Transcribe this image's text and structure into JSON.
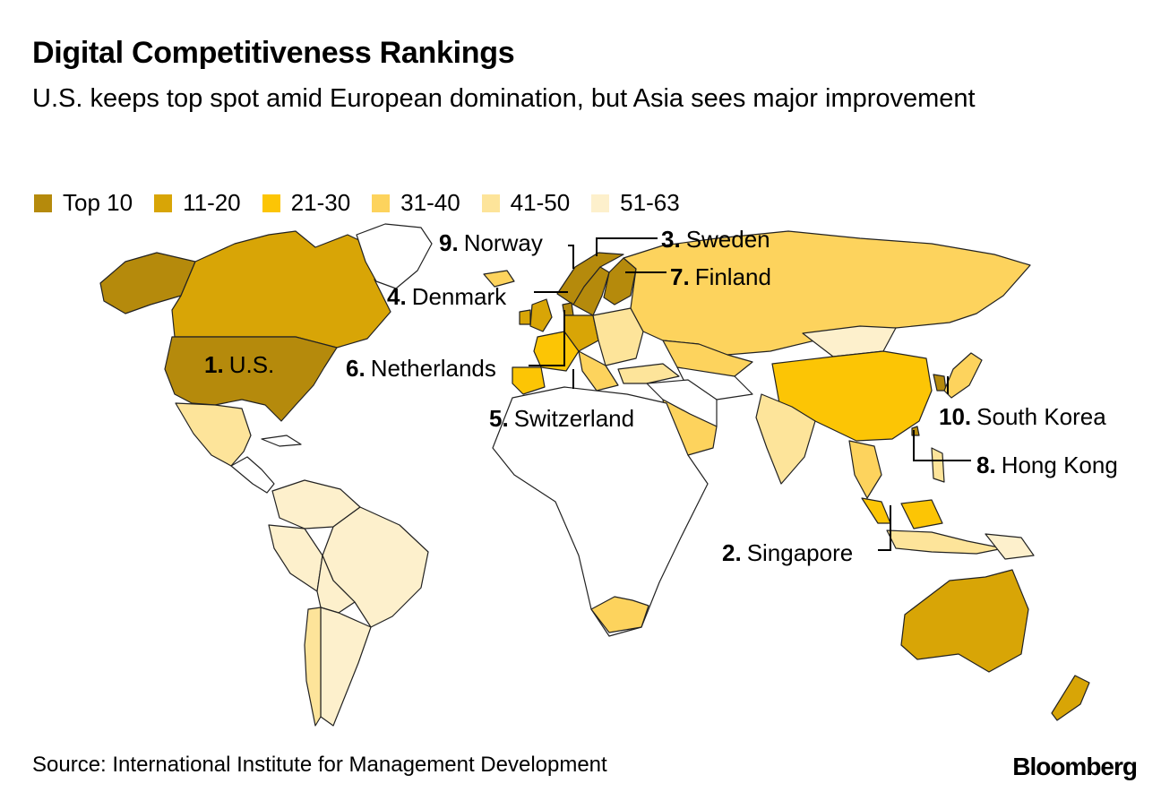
{
  "title": "Digital Competitiveness Rankings",
  "subtitle": "U.S. keeps top spot amid European domination, but Asia sees major improvement",
  "legend": [
    {
      "label": "Top 10",
      "color": "#b58a0c"
    },
    {
      "label": "11-20",
      "color": "#d8a506"
    },
    {
      "label": "21-30",
      "color": "#fcc505"
    },
    {
      "label": "31-40",
      "color": "#fdd35d"
    },
    {
      "label": "41-50",
      "color": "#fde49a"
    },
    {
      "label": "51-63",
      "color": "#fdf0cc"
    }
  ],
  "unranked_color": "#ffffff",
  "ranked": [
    {
      "rank": "1.",
      "country": "U.S."
    },
    {
      "rank": "2.",
      "country": "Singapore"
    },
    {
      "rank": "3.",
      "country": "Sweden"
    },
    {
      "rank": "4.",
      "country": "Denmark"
    },
    {
      "rank": "5.",
      "country": "Switzerland"
    },
    {
      "rank": "6.",
      "country": "Netherlands"
    },
    {
      "rank": "7.",
      "country": "Finland"
    },
    {
      "rank": "8.",
      "country": "Hong Kong"
    },
    {
      "rank": "9.",
      "country": "Norway"
    },
    {
      "rank": "10.",
      "country": "South Korea"
    }
  ],
  "source": "Source: International Institute for Management Development",
  "brand": "Bloomberg"
}
